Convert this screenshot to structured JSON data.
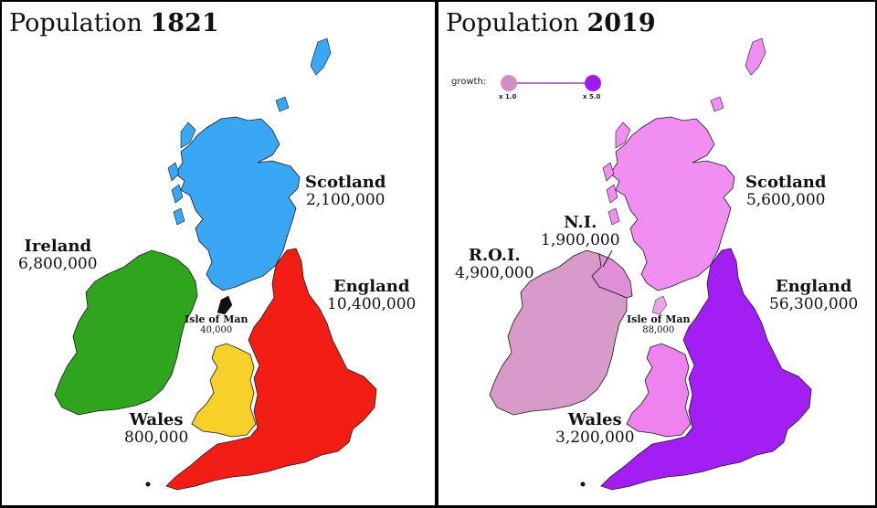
{
  "panels": {
    "left": {
      "title_prefix": "Population",
      "title_year": "1821",
      "regions": {
        "scotland": {
          "name": "Scotland",
          "value": "2,100,000",
          "color": "#3aa7f5"
        },
        "ireland": {
          "name": "Ireland",
          "value": "6,800,000",
          "color": "#2fa51e"
        },
        "england": {
          "name": "England",
          "value": "10,400,000",
          "color": "#f21e16"
        },
        "wales": {
          "name": "Wales",
          "value": "800,000",
          "color": "#f7d12a"
        },
        "isle_of_man": {
          "name": "Isle of Man",
          "value": "40,000",
          "color": "#111111"
        }
      }
    },
    "right": {
      "title_prefix": "Population",
      "title_year": "2019",
      "legend": {
        "label": "growth:",
        "low_label": "x 1.0",
        "high_label": "x 5.0",
        "low_color": "#d38fc4",
        "high_color": "#a019f0"
      },
      "regions": {
        "scotland": {
          "name": "Scotland",
          "value": "5,600,000",
          "color": "#f08ef2"
        },
        "ni": {
          "name": "N.I.",
          "value": "1,900,000",
          "color": "#df8ed8"
        },
        "roi": {
          "name": "R.O.I.",
          "value": "4,900,000",
          "color": "#d89ac9"
        },
        "england": {
          "name": "England",
          "value": "56,300,000",
          "color": "#a21ef2"
        },
        "wales": {
          "name": "Wales",
          "value": "3,200,000",
          "color": "#ee82ee"
        },
        "isle_of_man": {
          "name": "Isle of Man",
          "value": "88,000",
          "color": "#e8a4e8"
        }
      }
    }
  }
}
